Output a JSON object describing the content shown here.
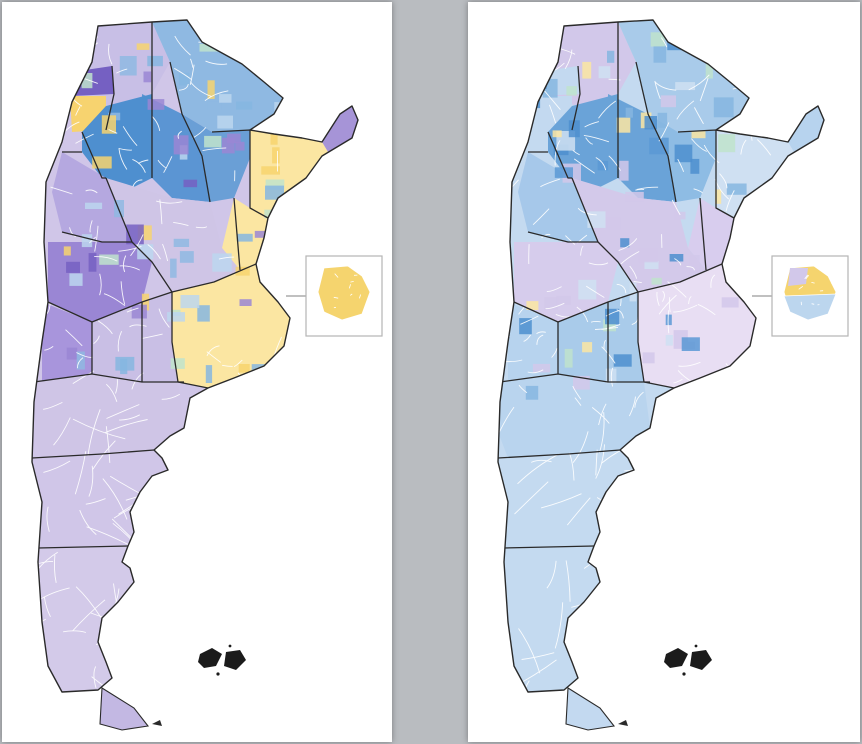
{
  "colors": {
    "background": "#b9bcc0",
    "panel": "#ffffff",
    "border": "#2a2a2a",
    "subdivision": "#ffffff",
    "lavender": "#cfc5e6",
    "purple": "#9a86d4",
    "dark_purple": "#7560c2",
    "light_blue": "#bcd6ee",
    "mid_blue": "#86b6e1",
    "dark_blue": "#4e8fcf",
    "yellow": "#fbe6a2",
    "gold": "#f7d36f",
    "green": "#bfe3cd"
  },
  "maps": [
    {
      "id": "left",
      "callout": "buenos-aires-metro-inset",
      "fills": {
        "north": "#8fb9e2",
        "north_west": "#c8bfe6",
        "nw_corner": "#7560c2",
        "nw_gold": "#f7d36f",
        "center_north": "#4e8fcf",
        "chaco": "#6a9fd6",
        "formosa": "#5b95d3",
        "misiones": "#a694d7",
        "east_strip": "#fbe6a2",
        "corrientes": "#fbe6a2",
        "center": "#cfc5e6",
        "cordoba_strip": "#b5a8e0",
        "cuyo": "#9a86d4",
        "la_pampa": "#c9bfe5",
        "buenos_aires": "#fbe6a2",
        "west_lower": "#a895dc",
        "patagonia_north": "#cfc5e6",
        "patagonia_mid": "#d0c6e8",
        "patagonia_south": "#d3cae9",
        "tierra_del_fuego": "#c3b8e3",
        "inset": "#f5d46e"
      },
      "patches": [
        "#8fb9e2",
        "#f7d36f",
        "#bfe3cd",
        "#86b6e1",
        "#9a86d4",
        "#bcd6ee",
        "#7560c2"
      ]
    },
    {
      "id": "right",
      "callout": "buenos-aires-metro-inset",
      "fills": {
        "north": "#a9cbea",
        "north_west": "#d2c8ea",
        "nw_corner": "#c3d9f0",
        "nw_gold": "#c3d9f0",
        "center_north": "#6aa3d8",
        "chaco": "#8ebce4",
        "formosa": "#6aa3d8",
        "misiones": "#b7d3ee",
        "east_strip": "#cfe0f2",
        "corrientes": "#d8cdee",
        "center": "#d3c9ea",
        "cordoba_strip": "#a6c8ea",
        "cuyo": "#d6ccec",
        "la_pampa": "#a9cbea",
        "buenos_aires": "#e8def3",
        "west_lower": "#b7d3ee",
        "patagonia_north": "#b9d4ee",
        "patagonia_mid": "#c4daf0",
        "patagonia_south": "#c4daf0",
        "tierra_del_fuego": "#c3d9f0",
        "inset": "#f5d46e"
      },
      "patches": [
        "#5a99d5",
        "#fbe6a2",
        "#bfe3cd",
        "#d2c8ea",
        "#86b6e1",
        "#cfe0f2",
        "#4e8fcf"
      ]
    }
  ]
}
